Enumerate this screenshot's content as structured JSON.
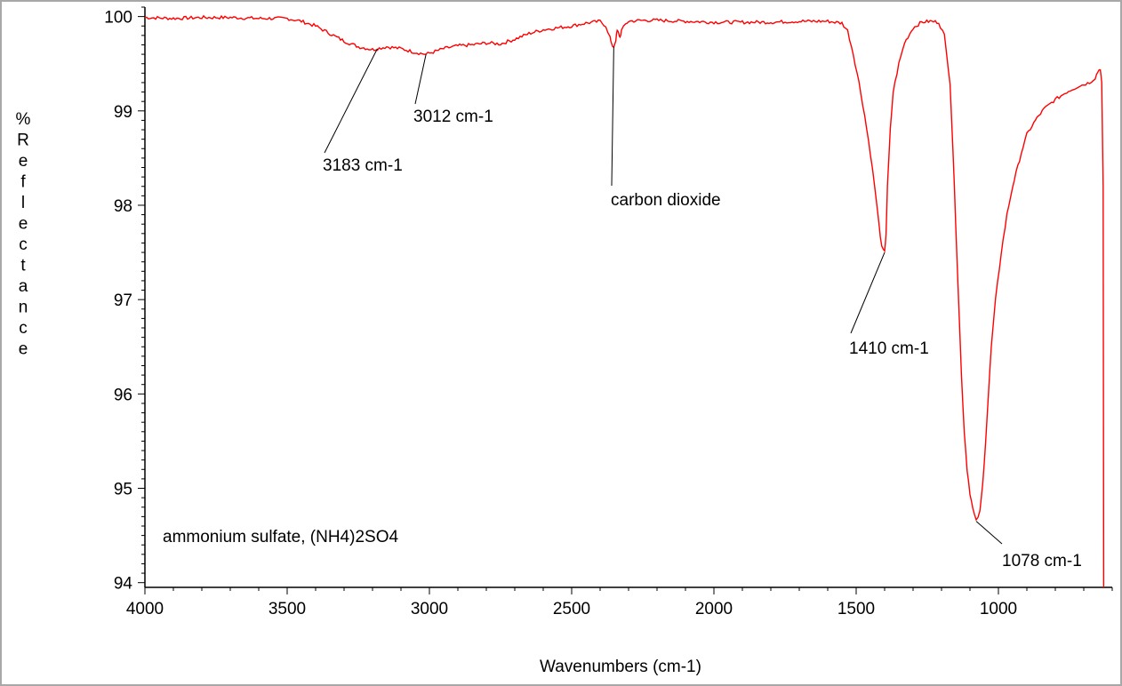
{
  "chart_data": {
    "type": "line",
    "xlabel": "Wavenumbers (cm-1)",
    "ylabel": "%Reflectance",
    "xlim": [
      4000,
      600
    ],
    "ylim": [
      93.95,
      100.1
    ],
    "x_reversed": true,
    "xticks": [
      4000,
      3500,
      3000,
      2500,
      2000,
      1500,
      1000
    ],
    "yticks": [
      100,
      99,
      98,
      97,
      96,
      95,
      94
    ],
    "grid": false,
    "sample_label": "ammonium sulfate, (NH4)2SO4",
    "series": [
      {
        "color": "#ff0000",
        "points": [
          [
            4000,
            99.99
          ],
          [
            3900,
            99.98
          ],
          [
            3800,
            99.99
          ],
          [
            3700,
            99.99
          ],
          [
            3600,
            99.98
          ],
          [
            3500,
            99.98
          ],
          [
            3450,
            99.95
          ],
          [
            3400,
            99.9
          ],
          [
            3350,
            99.82
          ],
          [
            3300,
            99.74
          ],
          [
            3250,
            99.68
          ],
          [
            3200,
            99.65
          ],
          [
            3183,
            99.66
          ],
          [
            3150,
            99.68
          ],
          [
            3100,
            99.66
          ],
          [
            3050,
            99.62
          ],
          [
            3012,
            99.6
          ],
          [
            2980,
            99.63
          ],
          [
            2950,
            99.66
          ],
          [
            2900,
            99.69
          ],
          [
            2850,
            99.7
          ],
          [
            2800,
            99.72
          ],
          [
            2750,
            99.71
          ],
          [
            2700,
            99.76
          ],
          [
            2650,
            99.82
          ],
          [
            2600,
            99.86
          ],
          [
            2550,
            99.88
          ],
          [
            2500,
            99.9
          ],
          [
            2450,
            99.93
          ],
          [
            2400,
            99.95
          ],
          [
            2380,
            99.9
          ],
          [
            2365,
            99.78
          ],
          [
            2360,
            99.7
          ],
          [
            2352,
            99.68
          ],
          [
            2345,
            99.75
          ],
          [
            2340,
            99.85
          ],
          [
            2335,
            99.82
          ],
          [
            2330,
            99.78
          ],
          [
            2325,
            99.85
          ],
          [
            2310,
            99.92
          ],
          [
            2300,
            99.95
          ],
          [
            2250,
            99.96
          ],
          [
            2200,
            99.96
          ],
          [
            2100,
            99.95
          ],
          [
            2000,
            99.94
          ],
          [
            1900,
            99.94
          ],
          [
            1800,
            99.94
          ],
          [
            1700,
            99.95
          ],
          [
            1600,
            99.95
          ],
          [
            1550,
            99.93
          ],
          [
            1530,
            99.85
          ],
          [
            1510,
            99.6
          ],
          [
            1490,
            99.3
          ],
          [
            1470,
            98.95
          ],
          [
            1450,
            98.55
          ],
          [
            1435,
            98.2
          ],
          [
            1420,
            97.8
          ],
          [
            1410,
            97.55
          ],
          [
            1400,
            97.5
          ],
          [
            1395,
            97.7
          ],
          [
            1390,
            98.2
          ],
          [
            1380,
            98.8
          ],
          [
            1370,
            99.2
          ],
          [
            1350,
            99.5
          ],
          [
            1330,
            99.72
          ],
          [
            1300,
            99.88
          ],
          [
            1270,
            99.94
          ],
          [
            1240,
            99.95
          ],
          [
            1210,
            99.94
          ],
          [
            1190,
            99.8
          ],
          [
            1170,
            99.3
          ],
          [
            1160,
            98.6
          ],
          [
            1150,
            97.8
          ],
          [
            1140,
            97.0
          ],
          [
            1130,
            96.2
          ],
          [
            1120,
            95.6
          ],
          [
            1110,
            95.2
          ],
          [
            1100,
            94.95
          ],
          [
            1090,
            94.78
          ],
          [
            1078,
            94.65
          ],
          [
            1065,
            94.75
          ],
          [
            1055,
            95.05
          ],
          [
            1045,
            95.5
          ],
          [
            1035,
            96.0
          ],
          [
            1025,
            96.5
          ],
          [
            1010,
            97.0
          ],
          [
            990,
            97.5
          ],
          [
            970,
            97.9
          ],
          [
            950,
            98.2
          ],
          [
            920,
            98.55
          ],
          [
            900,
            98.75
          ],
          [
            870,
            98.9
          ],
          [
            840,
            99.02
          ],
          [
            800,
            99.12
          ],
          [
            760,
            99.2
          ],
          [
            720,
            99.26
          ],
          [
            680,
            99.3
          ],
          [
            660,
            99.35
          ],
          [
            650,
            99.42
          ],
          [
            642,
            99.45
          ],
          [
            637,
            99.3
          ],
          [
            632,
            98.2
          ],
          [
            630,
            93.95
          ]
        ]
      }
    ],
    "annotations": [
      {
        "text": "3183 cm-1",
        "x": 3183,
        "y": 99.66
      },
      {
        "text": "3012 cm-1",
        "x": 3012,
        "y": 99.6
      },
      {
        "text": "carbon dioxide",
        "x": 2352,
        "y": 99.68
      },
      {
        "text": "1410 cm-1",
        "x": 1400,
        "y": 97.5
      },
      {
        "text": "1078 cm-1",
        "x": 1078,
        "y": 94.65
      }
    ]
  }
}
